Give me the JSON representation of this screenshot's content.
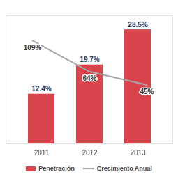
{
  "chart_data": {
    "type": "bar",
    "categories": [
      "2011",
      "2012",
      "2013"
    ],
    "series": [
      {
        "name": "Penetración",
        "type": "bar",
        "color": "#d9434b",
        "values": [
          12.4,
          19.7,
          28.5
        ],
        "value_labels": [
          "12.4%",
          "19.7%",
          "28.5%"
        ]
      },
      {
        "name": "Crecimiento Anual",
        "type": "line",
        "color": "#a6a6a6",
        "axis": "y2",
        "values": [
          109,
          64,
          45
        ],
        "value_labels": [
          "109%",
          "64%",
          "45%"
        ]
      }
    ],
    "ylim": [
      0,
      32
    ],
    "y2lim": [
      -40,
      145
    ],
    "data_labels": true,
    "tick_labels": "x",
    "legend": "bottom"
  }
}
